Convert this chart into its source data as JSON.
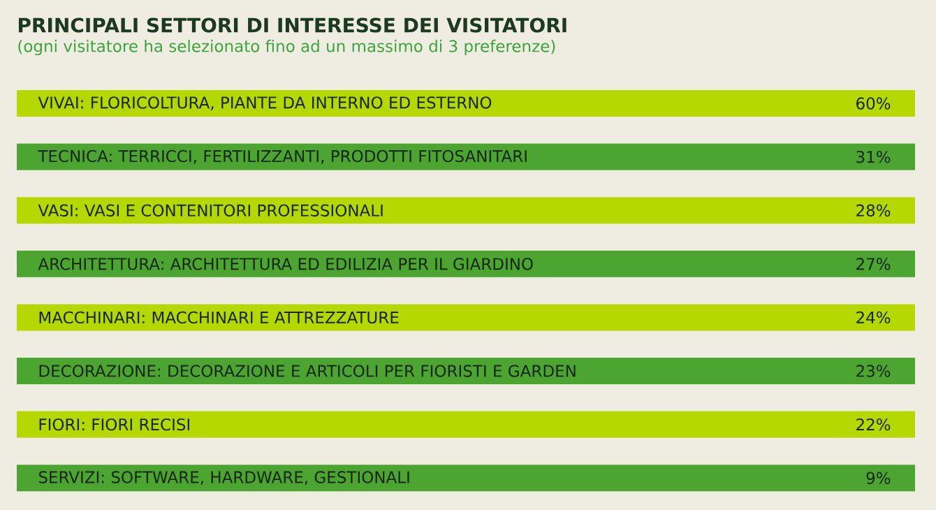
{
  "chart_data": {
    "type": "other",
    "title": "PRINCIPALI SETTORI DI INTERESSE DEI VISITATORI",
    "subtitle": "(ogni visitatore ha selezionato fino ad un massimo di 3 preferenze)",
    "categories": [
      "VIVAI: FLORICOLTURA, PIANTE DA INTERNO ED ESTERNO",
      "TECNICA: TERRICCI, FERTILIZZANTI, PRODOTTI FITOSANITARI",
      "VASI: VASI E CONTENITORI PROFESSIONALI",
      "ARCHITETTURA: ARCHITETTURA ED EDILIZIA PER IL GIARDINO",
      "MACCHINARI: MACCHINARI E ATTREZZATURE",
      "DECORAZIONE: DECORAZIONE E ARTICOLI PER FIORISTI E GARDEN",
      "FIORI: FIORI RECISI",
      "SERVIZI: SOFTWARE, HARDWARE, GESTIONALI"
    ],
    "values": [
      60,
      31,
      28,
      27,
      24,
      23,
      22,
      9
    ],
    "value_labels": [
      "60%",
      "31%",
      "28%",
      "27%",
      "24%",
      "23%",
      "22%",
      "9%"
    ],
    "colors": [
      "#b5d800",
      "#4ba530",
      "#b5d800",
      "#4ba530",
      "#b5d800",
      "#4ba530",
      "#b5d800",
      "#4ba530"
    ]
  }
}
